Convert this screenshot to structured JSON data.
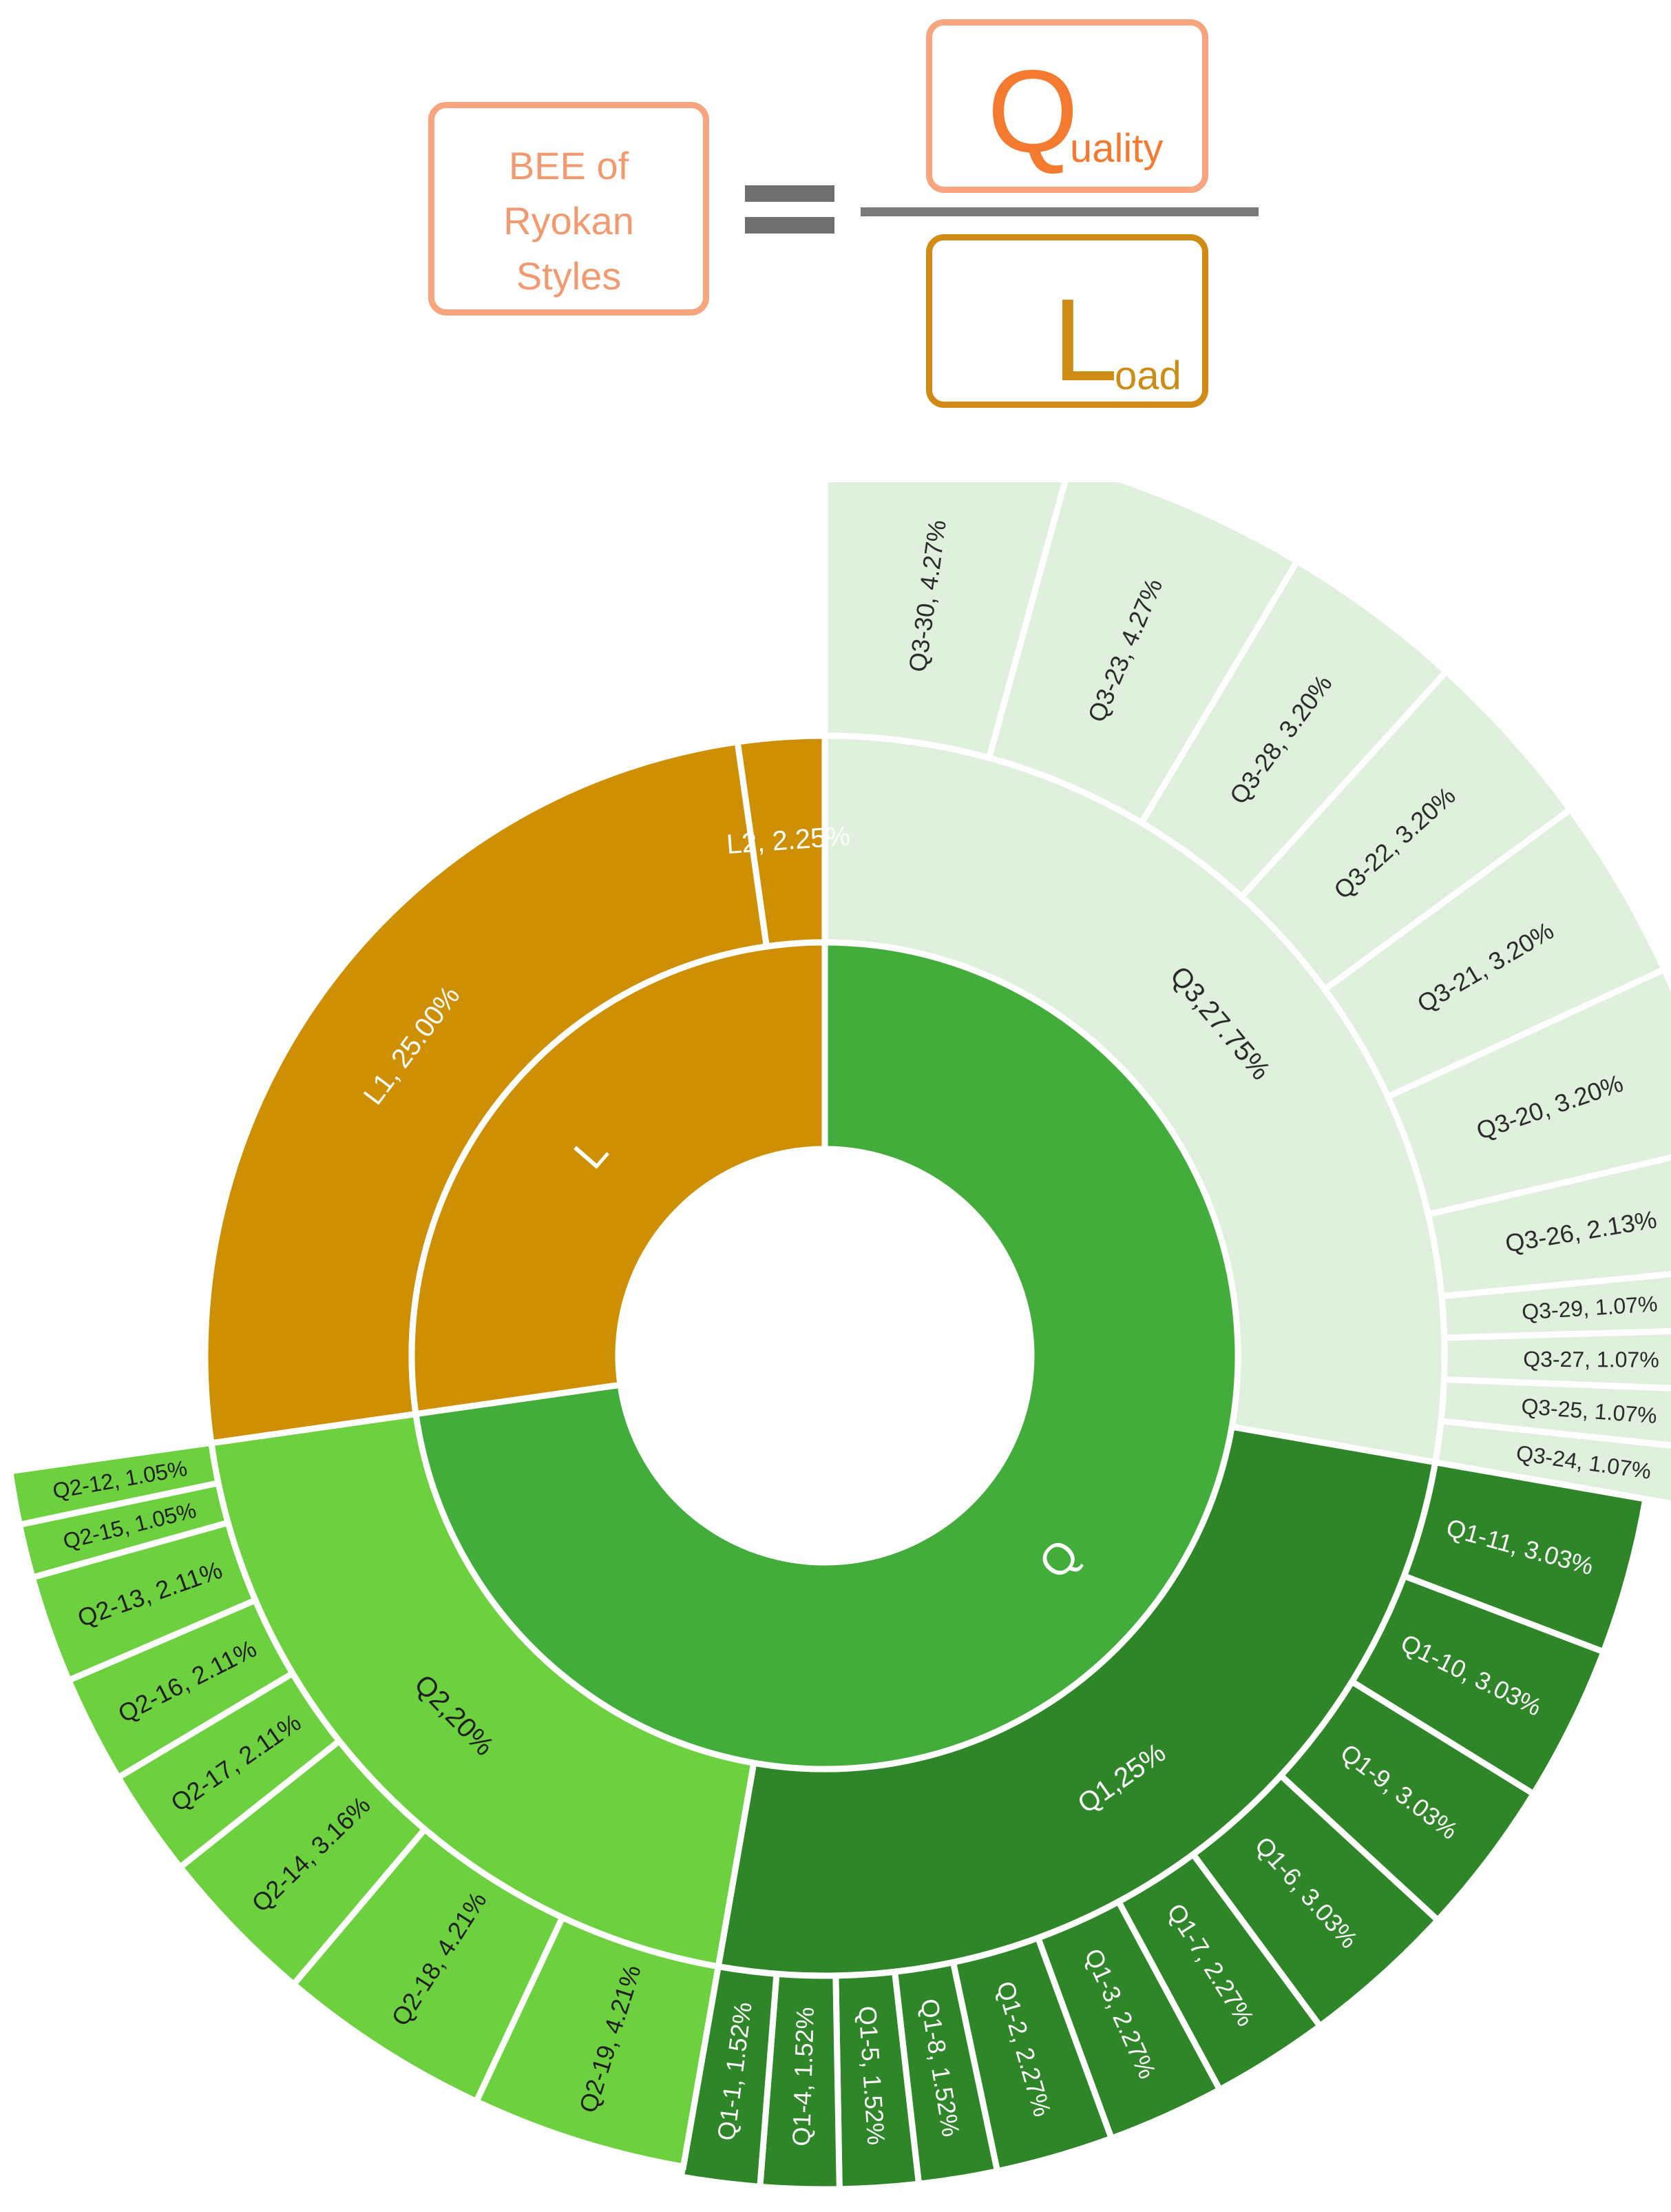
{
  "formula": {
    "left_label": "BEE of\nRyokan\nStyles",
    "numerator_big": "Q",
    "numerator_small": "uality",
    "denominator_big": "L",
    "denominator_small": "oad"
  },
  "colors": {
    "Q": "#43ad3c",
    "L": "#cf8f03",
    "Q1": "#2e8628",
    "Q2": "#6dd03f",
    "Q3": "#dff0dc",
    "L1": "#cf8f03",
    "L2": "#cf8f03"
  },
  "chart_data": {
    "type": "sunburst",
    "inner": [
      {
        "name": "Q",
        "label": "Q",
        "value": 72.75
      },
      {
        "name": "L",
        "label": "L",
        "value": 27.25
      }
    ],
    "middle": [
      {
        "name": "Q3",
        "parent": "Q",
        "label": "Q3,27.75%",
        "value": 27.75
      },
      {
        "name": "Q1",
        "parent": "Q",
        "label": "Q1,25%",
        "value": 25
      },
      {
        "name": "Q2",
        "parent": "Q",
        "label": "Q2,20%",
        "value": 20
      },
      {
        "name": "L1",
        "parent": "L",
        "label": "L1, 25.00%",
        "value": 25
      },
      {
        "name": "L2",
        "parent": "L",
        "label": "L2, 2.25%",
        "value": 2.25
      }
    ],
    "outer": [
      {
        "parent": "Q3",
        "label": "Q3-30, 4.27%",
        "value": 4.27
      },
      {
        "parent": "Q3",
        "label": "Q3-23, 4.27%",
        "value": 4.27
      },
      {
        "parent": "Q3",
        "label": "Q3-28, 3.20%",
        "value": 3.2
      },
      {
        "parent": "Q3",
        "label": "Q3-22, 3.20%",
        "value": 3.2
      },
      {
        "parent": "Q3",
        "label": "Q3-21, 3.20%",
        "value": 3.2
      },
      {
        "parent": "Q3",
        "label": "Q3-20, 3.20%",
        "value": 3.2
      },
      {
        "parent": "Q3",
        "label": "Q3-26, 2.13%",
        "value": 2.13
      },
      {
        "parent": "Q3",
        "label": "Q3-29, 1.07%",
        "value": 1.07
      },
      {
        "parent": "Q3",
        "label": "Q3-27, 1.07%",
        "value": 1.07
      },
      {
        "parent": "Q3",
        "label": "Q3-25, 1.07%",
        "value": 1.07
      },
      {
        "parent": "Q3",
        "label": "Q3-24, 1.07%",
        "value": 1.07
      },
      {
        "parent": "Q1",
        "label": "Q1-11, 3.03%",
        "value": 3.03
      },
      {
        "parent": "Q1",
        "label": "Q1-10, 3.03%",
        "value": 3.03
      },
      {
        "parent": "Q1",
        "label": "Q1-9, 3.03%",
        "value": 3.03
      },
      {
        "parent": "Q1",
        "label": "Q1-6, 3.03%",
        "value": 3.03
      },
      {
        "parent": "Q1",
        "label": "Q1-7, 2.27%",
        "value": 2.27
      },
      {
        "parent": "Q1",
        "label": "Q1-3, 2.27%",
        "value": 2.27
      },
      {
        "parent": "Q1",
        "label": "Q1-2, 2.27%",
        "value": 2.27
      },
      {
        "parent": "Q1",
        "label": "Q1-8, 1.52%",
        "value": 1.52
      },
      {
        "parent": "Q1",
        "label": "Q1-5, 1.52%",
        "value": 1.52
      },
      {
        "parent": "Q1",
        "label": "Q1-4, 1.52%",
        "value": 1.52
      },
      {
        "parent": "Q1",
        "label": "Q1-1, 1.52%",
        "value": 1.52
      },
      {
        "parent": "Q2",
        "label": "Q2-19, 4.21%",
        "value": 4.21
      },
      {
        "parent": "Q2",
        "label": "Q2-18, 4.21%",
        "value": 4.21
      },
      {
        "parent": "Q2",
        "label": "Q2-14, 3.16%",
        "value": 3.16
      },
      {
        "parent": "Q2",
        "label": "Q2-17, 2.11%",
        "value": 2.11
      },
      {
        "parent": "Q2",
        "label": "Q2-16, 2.11%",
        "value": 2.11
      },
      {
        "parent": "Q2",
        "label": "Q2-13, 2.11%",
        "value": 2.11
      },
      {
        "parent": "Q2",
        "label": "Q2-15, 1.05%",
        "value": 1.05
      },
      {
        "parent": "Q2",
        "label": "Q2-12, 1.05%",
        "value": 1.05
      }
    ]
  }
}
